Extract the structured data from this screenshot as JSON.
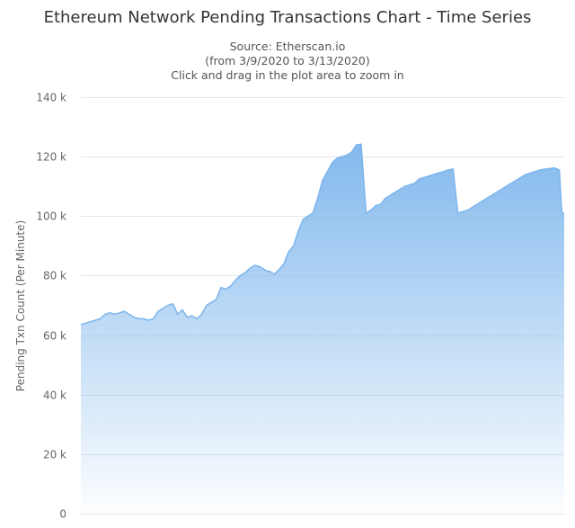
{
  "chart_data": {
    "type": "area",
    "title": "Ethereum Network Pending Transactions Chart - Time Series",
    "subtitle_lines": [
      "Source: Etherscan.io",
      "(from 3/9/2020 to 3/13/2020)",
      "Click and drag in the plot area to zoom in"
    ],
    "ylabel": "Pending Txn Count (Per Minute)",
    "xlabel": "",
    "ylim": [
      0,
      140000
    ],
    "y_ticks": [
      {
        "value": 0,
        "label": "0"
      },
      {
        "value": 20000,
        "label": "20 k"
      },
      {
        "value": 40000,
        "label": "40 k"
      },
      {
        "value": 60000,
        "label": "60 k"
      },
      {
        "value": 80000,
        "label": "80 k"
      },
      {
        "value": 100000,
        "label": "100 k"
      },
      {
        "value": 120000,
        "label": "120 k"
      },
      {
        "value": 140000,
        "label": "140 k"
      }
    ],
    "grid": true,
    "legend": "none",
    "x_range": [
      0,
      1
    ],
    "series": [
      {
        "color": "#7cb5ec",
        "x": [
          0,
          0.01,
          0.02,
          0.03,
          0.04,
          0.05,
          0.06,
          0.07,
          0.08,
          0.09,
          0.1,
          0.11,
          0.12,
          0.13,
          0.14,
          0.15,
          0.16,
          0.17,
          0.18,
          0.19,
          0.195,
          0.2,
          0.21,
          0.22,
          0.23,
          0.24,
          0.25,
          0.26,
          0.27,
          0.28,
          0.29,
          0.3,
          0.31,
          0.32,
          0.33,
          0.34,
          0.35,
          0.36,
          0.37,
          0.38,
          0.385,
          0.39,
          0.4,
          0.41,
          0.42,
          0.43,
          0.44,
          0.45,
          0.46,
          0.47,
          0.48,
          0.49,
          0.5,
          0.51,
          0.52,
          0.53,
          0.54,
          0.55,
          0.56,
          0.57,
          0.58,
          0.59,
          0.6,
          0.61,
          0.62,
          0.625,
          0.63,
          0.64,
          0.65,
          0.66,
          0.67,
          0.68,
          0.69,
          0.7,
          0.71,
          0.72,
          0.73,
          0.74,
          0.75,
          0.76,
          0.77,
          0.78,
          0.79,
          0.8,
          0.805,
          0.81,
          0.82,
          0.83,
          0.84,
          0.85,
          0.86,
          0.87,
          0.88,
          0.89,
          0.9,
          0.91,
          0.92,
          0.93,
          0.94,
          0.95,
          0.96,
          0.97,
          0.98,
          0.99,
          0.995,
          1.0
        ],
        "values": [
          63500,
          64000,
          64500,
          65000,
          65500,
          67000,
          67500,
          67000,
          67500,
          68000,
          67000,
          66000,
          65500,
          65500,
          65000,
          65500,
          68000,
          69000,
          70000,
          70500,
          69000,
          67000,
          68500,
          66000,
          66500,
          65500,
          67000,
          70000,
          71000,
          72000,
          76000,
          75500,
          76500,
          78500,
          80000,
          81000,
          82500,
          83500,
          83000,
          82000,
          81500,
          81500,
          80500,
          82000,
          84000,
          88000,
          90000,
          95000,
          99000,
          100000,
          101000,
          106000,
          112000,
          115000,
          118000,
          119500,
          120000,
          120500,
          121500,
          124000,
          124200,
          101000,
          102000,
          103500,
          104000,
          105000,
          106000,
          107000,
          108000,
          109000,
          110000,
          110500,
          111000,
          112500,
          113000,
          113500,
          114000,
          114500,
          115000,
          115500,
          115800,
          101000,
          101500,
          102000,
          102500,
          103000,
          104000,
          105000,
          106000,
          107000,
          108000,
          109000,
          110000,
          111000,
          112000,
          113000,
          114000,
          114500,
          115000,
          115500,
          115800,
          116000,
          116200,
          115500,
          101000,
          101000
        ]
      }
    ]
  }
}
